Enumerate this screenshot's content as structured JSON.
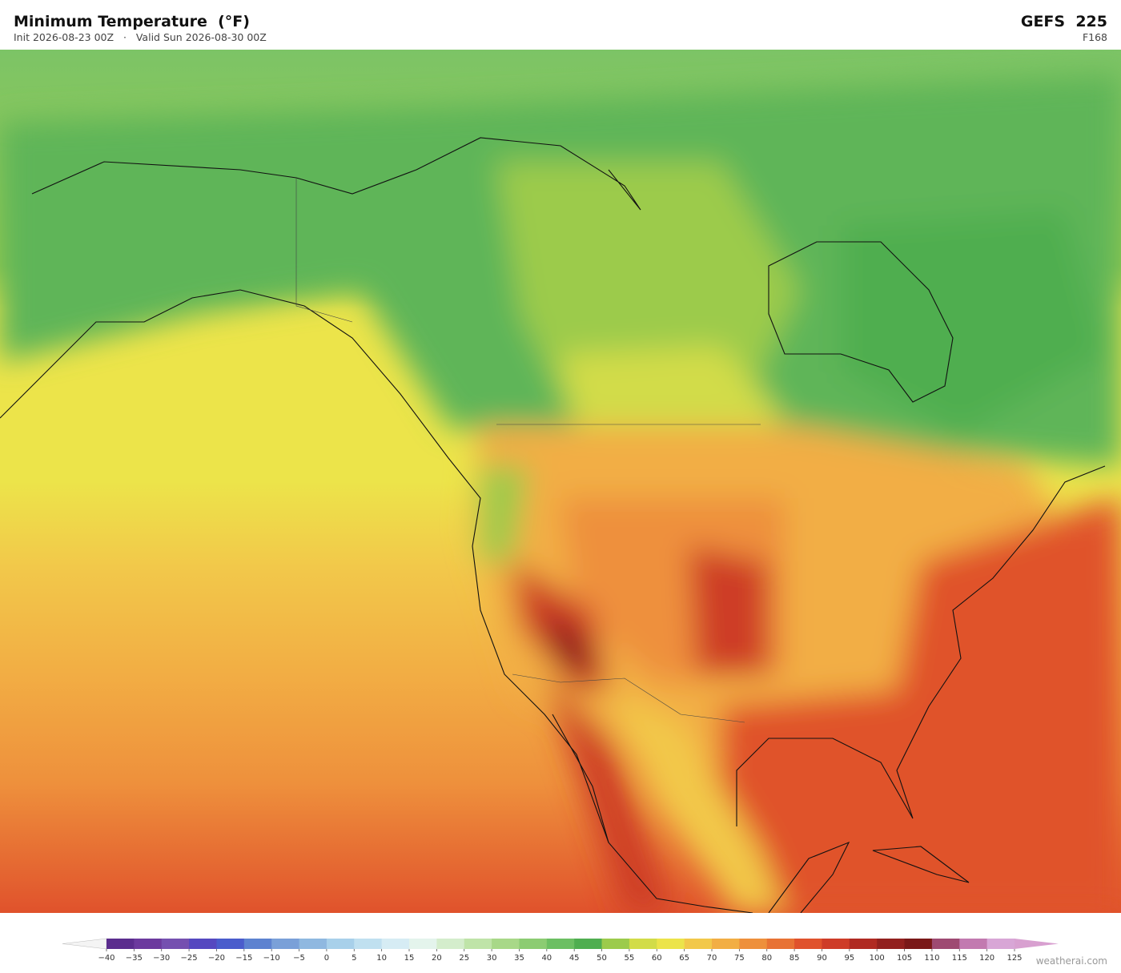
{
  "header": {
    "title": "Minimum Temperature  (°F)",
    "subtitle": "Init 2026-08-23 00Z   ·   Valid Sun 2026-08-30 00Z",
    "model": "GEFS  225",
    "forecast_hour": "F168"
  },
  "colorbar": {
    "ticks": [
      {
        "value": -40,
        "label": "−40"
      },
      {
        "value": -35,
        "label": "−35"
      },
      {
        "value": -30,
        "label": "−30"
      },
      {
        "value": -25,
        "label": "−25"
      },
      {
        "value": -20,
        "label": "−20"
      },
      {
        "value": -15,
        "label": "−15"
      },
      {
        "value": -10,
        "label": "−10"
      },
      {
        "value": -5,
        "label": "−5"
      },
      0,
      5,
      10,
      15,
      20,
      25,
      30,
      35,
      40,
      45,
      50,
      55,
      60,
      65,
      70,
      75,
      80,
      85,
      90,
      95,
      100,
      105,
      110,
      115,
      120,
      125
    ],
    "colors": [
      "#5b2d8e",
      "#6c3a9e",
      "#7550b0",
      "#5548c0",
      "#4a5ccc",
      "#5d82d0",
      "#7aa0d8",
      "#8fb8e0",
      "#a8d0ea",
      "#c0e0f0",
      "#d6ecf4",
      "#e4f4ec",
      "#d4edcc",
      "#bfe4a8",
      "#a8d888",
      "#8ccc72",
      "#6cbf62",
      "#4fae50",
      "#9ccb4c",
      "#d2dc48",
      "#ece44a",
      "#f2c84a",
      "#f2ae44",
      "#ee903c",
      "#e87234",
      "#e0522c",
      "#ce3c28",
      "#b02a22",
      "#92201e",
      "#7a1818",
      "#9e4a72",
      "#c27ab0",
      "#d8a6d6"
    ],
    "under_color": "#f4f4f4",
    "over_color": "#d8a0d0"
  },
  "footer": {
    "credit": "weatherai.com"
  }
}
